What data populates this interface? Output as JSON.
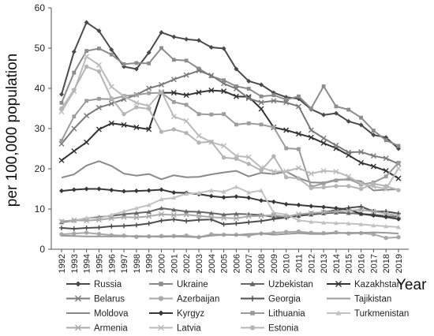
{
  "chart_data": {
    "type": "line",
    "ylabel": "per 100,000 population",
    "xlabel": "Year",
    "ylim": [
      0,
      60
    ],
    "y_ticks": [
      0,
      10,
      20,
      30,
      40,
      50,
      60
    ],
    "grid": false,
    "legend_position": "bottom",
    "x": [
      "1992",
      "1993",
      "1994",
      "1995",
      "1996",
      "1997",
      "1998",
      "1999",
      "2000",
      "2001",
      "2002",
      "2003",
      "2004",
      "2005",
      "2006",
      "2007",
      "2008",
      "2009",
      "2010",
      "2011",
      "2012",
      "2013",
      "2014",
      "2015",
      "2016",
      "2017",
      "2018",
      "2019"
    ],
    "series": [
      {
        "name": "Russia",
        "marker": "diamond",
        "color": "#4a4a4a",
        "values": [
          38.5,
          49.1,
          56.4,
          54.3,
          49.6,
          45.4,
          44.8,
          48.9,
          53.9,
          52.8,
          52.2,
          51.9,
          50.2,
          49.9,
          44.8,
          41.8,
          40.9,
          38.9,
          37.8,
          37.4,
          34.8,
          33.4,
          33.8,
          31.8,
          30.9,
          28.4,
          27.8,
          25.0
        ]
      },
      {
        "name": "Ukraine",
        "marker": "square",
        "color": "#8c8c8c",
        "values": [
          36.4,
          43.9,
          49.3,
          49.9,
          48.4,
          46.0,
          46.3,
          46.2,
          50.0,
          47.1,
          46.9,
          44.9,
          43.0,
          42.0,
          40.5,
          39.9,
          38.0,
          38.3,
          37.2,
          38.0,
          35.0,
          40.5,
          35.5,
          34.7,
          32.7,
          29.5,
          27.1,
          25.7
        ]
      },
      {
        "name": "Uzbekistan",
        "marker": "triangle",
        "color": "#666666",
        "values": [
          6.7,
          7.1,
          7.7,
          8.0,
          8.3,
          8.7,
          9.0,
          9.3,
          10.2,
          9.8,
          9.4,
          9.3,
          9.0,
          8.6,
          8.8,
          8.7,
          8.5,
          8.0,
          8.0,
          8.3,
          8.6,
          8.9,
          9.1,
          9.0,
          8.8,
          8.6,
          8.3,
          8.0
        ]
      },
      {
        "name": "Kazakhstan",
        "marker": "x",
        "color": "#333333",
        "values": [
          22.1,
          24.4,
          26.6,
          29.8,
          31.3,
          30.9,
          30.3,
          29.8,
          38.9,
          38.9,
          38.3,
          39.0,
          39.5,
          39.3,
          38.0,
          37.9,
          34.9,
          30.3,
          29.6,
          28.7,
          27.8,
          26.4,
          25.1,
          23.4,
          21.5,
          20.6,
          19.5,
          17.6
        ]
      },
      {
        "name": "Belarus",
        "marker": "x",
        "color": "#7a7a7a",
        "values": [
          26.2,
          30.0,
          33.2,
          35.2,
          36.2,
          37.3,
          38.4,
          40.0,
          40.9,
          42.2,
          43.3,
          44.4,
          43.2,
          41.2,
          39.9,
          37.5,
          36.5,
          36.9,
          36.5,
          35.5,
          29.6,
          27.6,
          25.8,
          24.1,
          24.2,
          23.2,
          22.6,
          21.2
        ]
      },
      {
        "name": "Azerbaijan",
        "marker": "circle",
        "color": "#a8a8a8",
        "values": [
          3.7,
          3.9,
          4.1,
          3.8,
          3.5,
          3.4,
          3.1,
          3.2,
          3.3,
          3.3,
          3.4,
          3.0,
          3.7,
          3.6,
          3.6,
          3.4,
          3.9,
          4.1,
          4.3,
          4.4,
          4.1,
          4.0,
          4.2,
          3.9,
          4.0,
          3.7,
          2.8,
          3.0
        ]
      },
      {
        "name": "Georgia",
        "marker": "plus",
        "color": "#4d4d4d",
        "values": [
          5.3,
          5.1,
          5.3,
          5.4,
          5.7,
          5.8,
          6.0,
          6.4,
          7.1,
          7.4,
          7.0,
          7.3,
          7.4,
          6.2,
          6.4,
          6.7,
          7.0,
          7.5,
          7.9,
          8.3,
          8.8,
          9.2,
          9.7,
          10.3,
          10.6,
          9.4,
          9.4,
          8.9
        ]
      },
      {
        "name": "Tajikistan",
        "marker": "none",
        "color": "#9a9a9a",
        "values": [
          3.4,
          3.3,
          3.2,
          3.2,
          3.2,
          3.2,
          3.3,
          3.2,
          3.1,
          3.2,
          3.1,
          3.0,
          3.4,
          3.6,
          3.5,
          3.8,
          3.9,
          3.6,
          3.8,
          4.0,
          3.8,
          3.8,
          4.0,
          4.1,
          4.1,
          4.2,
          4.1,
          3.9
        ]
      },
      {
        "name": "Moldova",
        "marker": "none",
        "color": "#8a8a8a",
        "values": [
          17.8,
          18.6,
          20.8,
          21.9,
          20.7,
          18.8,
          18.3,
          18.7,
          17.4,
          18.4,
          17.9,
          18.0,
          18.6,
          19.1,
          19.5,
          18.1,
          19.0,
          18.7,
          19.3,
          17.7,
          16.6,
          16.5,
          17.3,
          17.3,
          16.9,
          14.6,
          14.8,
          14.9
        ]
      },
      {
        "name": "Kyrgyz",
        "marker": "diamond",
        "color": "#383838",
        "values": [
          14.5,
          14.8,
          15.0,
          15.0,
          14.7,
          14.4,
          14.5,
          14.6,
          14.8,
          14.1,
          14.0,
          13.7,
          13.2,
          12.9,
          13.1,
          12.8,
          12.1,
          11.8,
          11.2,
          11.0,
          10.7,
          10.5,
          10.2,
          9.9,
          8.8,
          8.4,
          8.0,
          7.5
        ]
      },
      {
        "name": "Lithuania",
        "marker": "square",
        "color": "#9c9c9c",
        "values": [
          27.0,
          33.0,
          36.9,
          37.4,
          37.3,
          38.1,
          38.4,
          38.8,
          38.9,
          36.6,
          35.9,
          33.6,
          33.5,
          33.6,
          31.0,
          31.3,
          31.0,
          30.3,
          25.1,
          24.9,
          15.5,
          16.4,
          17.1,
          17.5,
          16.1,
          16.6,
          18.1,
          21.5
        ]
      },
      {
        "name": "Turkmenistan",
        "marker": "triangle",
        "color": "#c2c2c2",
        "values": [
          7.0,
          7.1,
          7.8,
          7.7,
          8.5,
          9.4,
          10.2,
          11.0,
          12.4,
          12.8,
          13.8,
          14.0,
          14.6,
          14.3,
          15.5,
          14.1,
          14.6,
          9.1,
          8.6,
          7.2,
          6.8,
          6.6,
          6.5,
          6.4,
          6.2,
          5.9,
          5.7,
          5.5
        ]
      },
      {
        "name": "Armenia",
        "marker": "x",
        "color": "#aaaaaa",
        "values": [
          6.9,
          7.2,
          7.1,
          7.3,
          7.7,
          8.0,
          7.9,
          8.2,
          8.7,
          8.5,
          8.6,
          8.3,
          8.0,
          7.8,
          7.7,
          8.2,
          8.3,
          8.5,
          8.1,
          8.7,
          9.0,
          9.2,
          9.4,
          9.6,
          9.8,
          9.4,
          8.9,
          8.3
        ]
      },
      {
        "name": "Latvia",
        "marker": "x",
        "color": "#bbbbbb",
        "values": [
          34.2,
          39.3,
          47.9,
          45.8,
          40.4,
          38.0,
          36.4,
          35.6,
          39.2,
          33.0,
          31.9,
          28.2,
          26.6,
          25.7,
          23.2,
          22.9,
          20.3,
          19.3,
          19.4,
          20.2,
          18.8,
          19.5,
          19.3,
          18.1,
          16.3,
          15.6,
          15.0,
          20.1
        ]
      },
      {
        "name": "Estonia",
        "marker": "circle",
        "color": "#b5b5b5",
        "values": [
          35.0,
          39.6,
          45.4,
          44.2,
          37.5,
          33.6,
          35.3,
          34.9,
          29.2,
          29.8,
          28.9,
          26.5,
          26.7,
          22.8,
          22.5,
          21.2,
          19.6,
          23.1,
          17.9,
          17.6,
          15.2,
          15.4,
          15.7,
          15.7,
          15.0,
          16.3,
          15.7,
          14.7
        ]
      }
    ]
  }
}
